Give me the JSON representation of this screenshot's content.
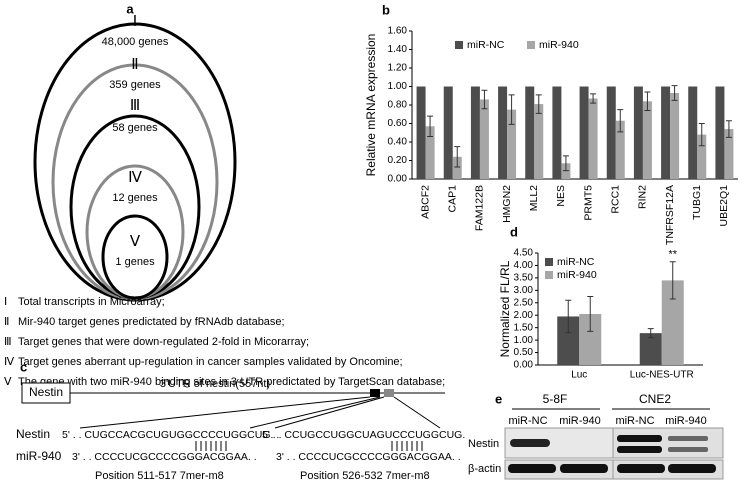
{
  "panel_a": {
    "letter": "a",
    "sets": [
      {
        "numeral": "Ⅰ",
        "label": "48,000 genes",
        "description": "Total transcripts in Microarray;"
      },
      {
        "numeral": "Ⅱ",
        "label": "359 genes",
        "description": "Mir-940 target genes predictated by fRNAdb database;"
      },
      {
        "numeral": "Ⅲ",
        "label": "58 genes",
        "description": "Target genes that were down-regulated 2-fold in Micorarray;"
      },
      {
        "numeral": "Ⅳ",
        "label": "12 genes",
        "description": "Target genes aberrant up-regulation in cancer samples validated by Oncomine;"
      },
      {
        "numeral": "Ⅴ",
        "label": "1 genes",
        "description": "The gene with two miR-940 binding sites in 3-UTR predictated by TargetScan database;"
      }
    ]
  },
  "chart_data": [
    {
      "type": "bar",
      "label": "b",
      "y_label": "Relative mRNA expression",
      "categories": [
        "ABCF2",
        "CAP1",
        "FAM122B",
        "HMGN2",
        "MLL2",
        "NES",
        "PRMT5",
        "RCC1",
        "RIN2",
        "TNFRSF12A",
        "TUBG1",
        "UBE2Q1"
      ],
      "series": [
        {
          "name": "miR-NC",
          "color": "#4d4d4d",
          "values": [
            1,
            1,
            1,
            1,
            1,
            1,
            1,
            1,
            1,
            1,
            1,
            1
          ]
        },
        {
          "name": "miR-940",
          "color": "#a6a6a6",
          "values": [
            0.57,
            0.24,
            0.86,
            0.75,
            0.81,
            0.17,
            0.87,
            0.63,
            0.84,
            0.93,
            0.48,
            0.54
          ],
          "errors": [
            0.11,
            0.11,
            0.1,
            0.16,
            0.1,
            0.08,
            0.05,
            0.12,
            0.1,
            0.08,
            0.12,
            0.09
          ]
        }
      ],
      "ylim": [
        0,
        1.6
      ],
      "yticks": [
        {
          "value": 0,
          "label": "0.00"
        },
        {
          "value": 0.2,
          "label": "0.20"
        },
        {
          "value": 0.4,
          "label": "0.40"
        },
        {
          "value": 0.6,
          "label": "0.60"
        },
        {
          "value": 0.8,
          "label": "0.80"
        },
        {
          "value": 1,
          "label": "1.00"
        },
        {
          "value": 1.2,
          "label": "1.20"
        },
        {
          "value": 1.4,
          "label": "1.40"
        },
        {
          "value": 1.6,
          "label": "1.60"
        }
      ]
    },
    {
      "type": "bar",
      "label": "d",
      "y_label": "Normalized FL/RL",
      "annotation": "**",
      "categories": [
        "Luc",
        "Luc-NES-UTR"
      ],
      "series": [
        {
          "name": "miR-NC",
          "color": "#4d4d4d",
          "values": [
            1.95,
            1.28
          ],
          "errors": [
            0.65,
            0.18
          ]
        },
        {
          "name": "miR-940",
          "color": "#a6a6a6",
          "values": [
            2.05,
            3.4
          ],
          "errors": [
            0.7,
            0.75
          ]
        }
      ],
      "ylim": [
        0,
        4.5
      ],
      "yticks": [
        {
          "value": 0,
          "label": "0.00"
        },
        {
          "value": 0.5,
          "label": "0.50"
        },
        {
          "value": 1,
          "label": "1.00"
        },
        {
          "value": 1.5,
          "label": "1.50"
        },
        {
          "value": 2,
          "label": "2.00"
        },
        {
          "value": 2.5,
          "label": "2.50"
        },
        {
          "value": 3,
          "label": "3.00"
        },
        {
          "value": 3.5,
          "label": "3.50"
        },
        {
          "value": 4,
          "label": "4.00"
        },
        {
          "value": 4.5,
          "label": "4.50"
        }
      ]
    }
  ],
  "panel_c": {
    "letter": "c",
    "gene": "Nestin",
    "utr": "3'UTR of nestin(557nt)",
    "row_labels": [
      "Nestin",
      "miR-940"
    ],
    "sites": [
      {
        "target": "5' . . CUGCCACGCUGUGGCCCCUGGCUG. .",
        "mirna": "3' . . CCCCUCGCCCCGGGACGGAA. .",
        "position": "Position 511-517  7mer-m8"
      },
      {
        "target": "5' . . CCUGCCUGGCUAGUCCCUGGCUG.",
        "mirna": "3' . . CCCCUCGCCCCGGGACGGAA. .",
        "position": "Position 526-532  7mer-m8"
      }
    ]
  },
  "panel_e": {
    "letter": "e",
    "cell_lines": [
      {
        "name": "5-8F",
        "lanes": [
          "miR-NC",
          "miR-940"
        ]
      },
      {
        "name": "CNE2",
        "lanes": [
          "miR-NC",
          "miR-940"
        ]
      }
    ],
    "rows": [
      "Nestin",
      "β-actin"
    ]
  }
}
